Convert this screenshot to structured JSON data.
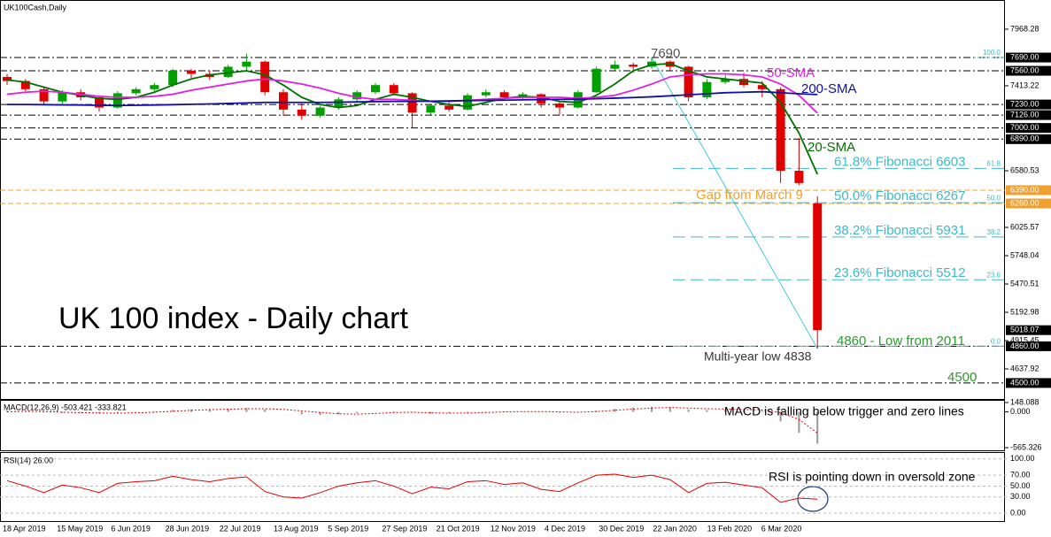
{
  "chart_data": [
    {
      "type": "candlestick",
      "title": "UK 100 index - Daily chart",
      "subtitle": "UK100Cash,Daily",
      "open": [
        7500,
        7460,
        7380,
        7260,
        7350,
        7300,
        7200,
        7340,
        7380,
        7420,
        7560,
        7530,
        7500,
        7600,
        7650,
        7350,
        7180,
        7120,
        7200,
        7280,
        7350,
        7420,
        7340,
        7150,
        7220,
        7180,
        7320,
        7350,
        7300,
        7330,
        7240,
        7200,
        7350,
        7580,
        7620,
        7600,
        7650,
        7600,
        7300,
        7450,
        7480,
        7420,
        7380,
        6580,
        6260
      ],
      "high": [
        7530,
        7480,
        7400,
        7370,
        7380,
        7320,
        7360,
        7400,
        7440,
        7580,
        7580,
        7560,
        7620,
        7727,
        7660,
        7380,
        7240,
        7220,
        7300,
        7370,
        7440,
        7440,
        7350,
        7240,
        7260,
        7340,
        7380,
        7370,
        7350,
        7340,
        7260,
        7370,
        7600,
        7660,
        7640,
        7690,
        7660,
        7610,
        7480,
        7520,
        7540,
        7460,
        7400,
        6900,
        6330
      ],
      "low": [
        7420,
        7360,
        7220,
        7240,
        7270,
        7160,
        7190,
        7320,
        7360,
        7400,
        7490,
        7470,
        7490,
        7560,
        7320,
        7120,
        7080,
        7100,
        7180,
        7260,
        7330,
        7320,
        7000,
        7130,
        7160,
        7170,
        7300,
        7280,
        7280,
        7200,
        7130,
        7190,
        7340,
        7560,
        7540,
        7580,
        7560,
        7260,
        7280,
        7430,
        7400,
        7300,
        6460,
        6440,
        4838
      ],
      "close": [
        7460,
        7380,
        7260,
        7350,
        7300,
        7200,
        7340,
        7380,
        7420,
        7560,
        7530,
        7500,
        7600,
        7650,
        7350,
        7180,
        7120,
        7200,
        7280,
        7350,
        7420,
        7340,
        7150,
        7220,
        7180,
        7320,
        7350,
        7300,
        7330,
        7240,
        7200,
        7350,
        7580,
        7620,
        7600,
        7650,
        7600,
        7300,
        7450,
        7480,
        7420,
        7380,
        6580,
        6460,
        5018
      ],
      "up_color": "#00a000",
      "down_color": "#e00000",
      "series": [
        {
          "name": "20-SMA",
          "color": "#007000",
          "values": [
            7470,
            7450,
            7400,
            7350,
            7320,
            7290,
            7280,
            7300,
            7350,
            7420,
            7480,
            7520,
            7540,
            7560,
            7520,
            7420,
            7300,
            7230,
            7200,
            7220,
            7280,
            7330,
            7300,
            7260,
            7230,
            7210,
            7250,
            7290,
            7310,
            7300,
            7260,
            7250,
            7320,
            7430,
            7560,
            7620,
            7630,
            7560,
            7500,
            7480,
            7460,
            7440,
            7250,
            6950,
            6546
          ]
        },
        {
          "name": "50-SMA",
          "color": "#e020e0",
          "values": [
            7330,
            7350,
            7360,
            7350,
            7330,
            7310,
            7300,
            7300,
            7310,
            7330,
            7370,
            7400,
            7430,
            7460,
            7480,
            7460,
            7430,
            7390,
            7340,
            7300,
            7280,
            7280,
            7270,
            7260,
            7260,
            7270,
            7280,
            7290,
            7300,
            7300,
            7300,
            7290,
            7300,
            7320,
            7370,
            7430,
            7500,
            7520,
            7530,
            7530,
            7520,
            7500,
            7430,
            7320,
            7145
          ]
        },
        {
          "name": "200-SMA",
          "color": "#1010a0",
          "values": [
            7230,
            7230,
            7228,
            7226,
            7225,
            7222,
            7220,
            7222,
            7225,
            7228,
            7232,
            7235,
            7240,
            7245,
            7250,
            7250,
            7250,
            7250,
            7252,
            7255,
            7258,
            7260,
            7260,
            7262,
            7265,
            7268,
            7270,
            7272,
            7275,
            7278,
            7280,
            7282,
            7286,
            7292,
            7298,
            7305,
            7315,
            7325,
            7335,
            7345,
            7350,
            7355,
            7345,
            7335,
            7327
          ]
        }
      ],
      "peak_label": "7690",
      "levels": [
        {
          "value": 7690,
          "label": "7690.00",
          "color": "#000000"
        },
        {
          "value": 7560,
          "label": "7560.00",
          "color": "#000000"
        },
        {
          "value": 7230,
          "label": "7230.00",
          "color": "#000000"
        },
        {
          "value": 7126,
          "label": "7126.00",
          "color": "#000000"
        },
        {
          "value": 7000,
          "label": "7000.00",
          "color": "#000000"
        },
        {
          "value": 6890,
          "label": "6890.00",
          "color": "#000000"
        },
        {
          "value": 6390,
          "label": "6390.00",
          "color": "#f0a030"
        },
        {
          "value": 6260,
          "label": "6260.00",
          "color": "#f0a030"
        },
        {
          "value": 4860,
          "label": "4860.00",
          "color": "#000000"
        },
        {
          "value": 4500,
          "label": "4500.00",
          "color": "#000000"
        }
      ],
      "last_price": 5018.07,
      "fibonacci": [
        {
          "ratio": "100.0",
          "value": 7690
        },
        {
          "ratio": "61.8",
          "value": 6603,
          "text": "61.8% Fibonacci 6603"
        },
        {
          "ratio": "50.0",
          "value": 6267,
          "text": "50.0% Fibonacci 6267"
        },
        {
          "ratio": "38.2",
          "value": 5931,
          "text": "38.2% Fibonacci 5931"
        },
        {
          "ratio": "23.6",
          "value": 5512,
          "text": "23.6% Fibonacci 5512"
        },
        {
          "ratio": "0.0",
          "value": 4860
        }
      ],
      "gap_label": "Gap from March 9",
      "low_2011_label": "4860 - Low from 2011",
      "multi_year_low_label": "Multi-year low 4838",
      "support_label": "4500",
      "ylim": [
        4352,
        8254
      ],
      "yticks": [
        7968.28,
        7413.22,
        6580.53,
        6025.57,
        5748.04,
        5470.51,
        5192.98,
        4915.45,
        4637.92
      ],
      "xticks": [
        "18 Apr 2019",
        "15 May 2019",
        "6 Jun 2019",
        "28 Jun 2019",
        "22 Jul 2019",
        "13 Aug 2019",
        "5 Sep 2019",
        "27 Sep 2019",
        "21 Oct 2019",
        "12 Nov 2019",
        "4 Dec 2019",
        "30 Dec 2019",
        "22 Jan 2020",
        "13 Feb 2020",
        "6 Mar 2020"
      ]
    },
    {
      "type": "macd",
      "label": "MACD(12,26,9) -503.421 -333.821",
      "annotation": "MACD is falling below trigger and zero lines",
      "histogram": [
        20,
        10,
        -10,
        -20,
        -15,
        -25,
        -20,
        -5,
        10,
        30,
        40,
        45,
        50,
        60,
        40,
        0,
        -40,
        -50,
        -40,
        -20,
        0,
        10,
        -10,
        -30,
        -20,
        -15,
        5,
        10,
        5,
        0,
        -10,
        -5,
        20,
        50,
        70,
        80,
        75,
        40,
        30,
        35,
        25,
        15,
        -150,
        -330,
        -503
      ],
      "signal": [
        0,
        10,
        5,
        -5,
        -12,
        -18,
        -20,
        -15,
        -5,
        10,
        25,
        35,
        42,
        50,
        50,
        40,
        15,
        -10,
        -30,
        -35,
        -25,
        -10,
        -5,
        -15,
        -20,
        -18,
        -10,
        0,
        5,
        5,
        0,
        -5,
        5,
        25,
        45,
        60,
        70,
        60,
        50,
        45,
        38,
        30,
        -10,
        -120,
        -333.821
      ],
      "ylim": [
        -621,
        190
      ],
      "yticks": [
        148.088,
        {
          "value": 0,
          "label": "0.000"
        },
        -565.326
      ]
    },
    {
      "type": "rsi",
      "label": "RSI(14) 26.00",
      "annotation": "RSI is pointing down in oversold zone",
      "values": [
        60,
        50,
        38,
        52,
        47,
        38,
        55,
        58,
        60,
        68,
        62,
        58,
        64,
        67,
        40,
        30,
        28,
        38,
        50,
        56,
        60,
        50,
        36,
        48,
        45,
        58,
        60,
        53,
        56,
        44,
        40,
        56,
        70,
        72,
        66,
        70,
        62,
        38,
        55,
        57,
        52,
        47,
        20,
        28,
        26
      ],
      "color": "#e00000",
      "ylim": [
        -16,
        111
      ],
      "yticks": [
        {
          "value": 100,
          "label": "100.00"
        },
        {
          "value": 70,
          "label": "70.00"
        },
        {
          "value": 50,
          "label": "50.00"
        },
        {
          "value": 30,
          "label": "30.00"
        },
        {
          "value": 0,
          "label": "0.00"
        }
      ]
    }
  ]
}
